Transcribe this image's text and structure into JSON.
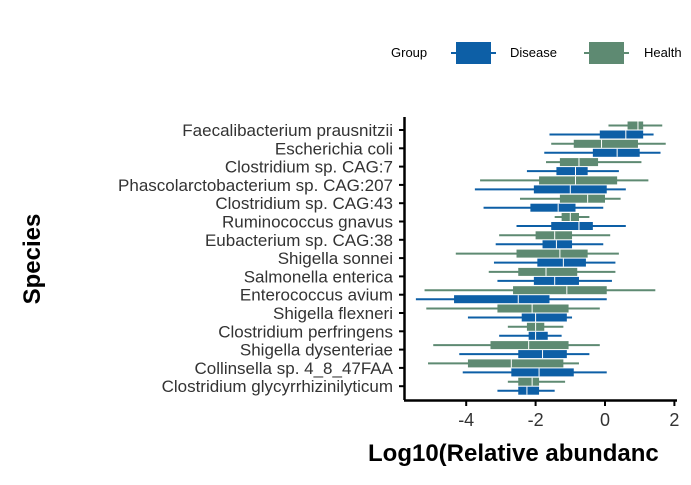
{
  "chart_data": {
    "type": "boxplot",
    "title": "",
    "xlabel": "Log10(Relative abundanc",
    "ylabel": "Species",
    "xlim": [
      -5.6,
      2
    ],
    "x_ticks": [
      -4,
      -2,
      0,
      2
    ],
    "x_tick_labels": [
      "-4",
      "-2",
      "0",
      "2"
    ],
    "legend": {
      "title": "Group",
      "position": "top-right",
      "entries": [
        {
          "name": "Disease",
          "color": "#0d5fa6"
        },
        {
          "name": "Health",
          "color": "#5e8a72"
        }
      ]
    },
    "categories": [
      "Faecalibacterium prausnitzii",
      "Escherichia coli",
      "Clostridium sp. CAG:7",
      "Phascolarctobacterium sp. CAG:207",
      "Clostridium sp. CAG:43",
      "Ruminococcus gnavus",
      "Eubacterium sp. CAG:38",
      "Shigella sonnei",
      "Salmonella enterica",
      "Enterococcus avium",
      "Shigella flexneri",
      "Clostridium perfringens",
      "Shigella dysenteriae",
      "Collinsella sp. 4_8_47FAA",
      "Clostridium glycyrrhizinilyticum"
    ],
    "series": [
      {
        "name": "Health",
        "color": "#5e8a72",
        "boxes": [
          {
            "min": 0.1,
            "q1": 0.65,
            "median": 0.95,
            "q3": 1.1,
            "max": 1.65
          },
          {
            "min": -1.55,
            "q1": -0.9,
            "median": -0.1,
            "q3": 0.95,
            "max": 1.75
          },
          {
            "min": -1.7,
            "q1": -1.3,
            "median": -0.75,
            "q3": -0.2,
            "max": 1.05
          },
          {
            "min": -3.6,
            "q1": -1.9,
            "median": -0.85,
            "q3": 0.35,
            "max": 1.25
          },
          {
            "min": -2.45,
            "q1": -1.3,
            "median": -0.5,
            "q3": 0.0,
            "max": 0.45
          },
          {
            "min": -1.45,
            "q1": -1.25,
            "median": -1.0,
            "q3": -0.75,
            "max": -0.45
          },
          {
            "min": -3.05,
            "q1": -2.0,
            "median": -1.45,
            "q3": -0.95,
            "max": 0.15
          },
          {
            "min": -4.3,
            "q1": -2.55,
            "median": -1.3,
            "q3": -0.5,
            "max": 0.4
          },
          {
            "min": -3.35,
            "q1": -2.5,
            "median": -1.7,
            "q3": -0.8,
            "max": 0.3
          },
          {
            "min": -5.2,
            "q1": -2.65,
            "median": -1.1,
            "q3": 0.05,
            "max": 1.45
          },
          {
            "min": -5.15,
            "q1": -3.1,
            "median": -2.1,
            "q3": -1.05,
            "max": -0.15
          },
          {
            "min": -2.8,
            "q1": -2.25,
            "median": -2.0,
            "q3": -1.75,
            "max": -1.2
          },
          {
            "min": -4.95,
            "q1": -3.3,
            "median": -2.2,
            "q3": -1.05,
            "max": -0.15
          },
          {
            "min": -5.1,
            "q1": -3.95,
            "median": -2.7,
            "q3": -1.2,
            "max": -0.75
          },
          {
            "min": -2.8,
            "q1": -2.5,
            "median": -2.1,
            "q3": -1.9,
            "max": -1.15
          }
        ]
      },
      {
        "name": "Disease",
        "color": "#0d5fa6",
        "boxes": [
          {
            "min": -1.6,
            "q1": -0.15,
            "median": 0.6,
            "q3": 1.1,
            "max": 1.4
          },
          {
            "min": -1.75,
            "q1": -0.35,
            "median": 0.35,
            "q3": 1.0,
            "max": 1.6
          },
          {
            "min": -2.25,
            "q1": -1.4,
            "median": -0.85,
            "q3": -0.5,
            "max": 0.4
          },
          {
            "min": -3.75,
            "q1": -2.05,
            "median": -1.0,
            "q3": 0.05,
            "max": 0.6
          },
          {
            "min": -3.5,
            "q1": -2.15,
            "median": -1.35,
            "q3": -0.85,
            "max": -0.05
          },
          {
            "min": -2.55,
            "q1": -1.55,
            "median": -0.75,
            "q3": -0.35,
            "max": 0.6
          },
          {
            "min": -3.15,
            "q1": -1.8,
            "median": -1.4,
            "q3": -0.95,
            "max": -0.05
          },
          {
            "min": -3.2,
            "q1": -1.95,
            "median": -1.2,
            "q3": -0.55,
            "max": 0.3
          },
          {
            "min": -3.1,
            "q1": -2.05,
            "median": -1.45,
            "q3": -0.75,
            "max": 0.2
          },
          {
            "min": -5.45,
            "q1": -4.35,
            "median": -2.5,
            "q3": -1.6,
            "max": 0.05
          },
          {
            "min": -3.95,
            "q1": -2.4,
            "median": -2.0,
            "q3": -1.1,
            "max": -0.95
          },
          {
            "min": -3.05,
            "q1": -2.2,
            "median": -2.0,
            "q3": -1.65,
            "max": -1.25
          },
          {
            "min": -4.2,
            "q1": -2.5,
            "median": -1.8,
            "q3": -1.1,
            "max": -0.45
          },
          {
            "min": -4.1,
            "q1": -2.7,
            "median": -1.9,
            "q3": -0.9,
            "max": 0.05
          },
          {
            "min": -3.1,
            "q1": -2.5,
            "median": -2.25,
            "q3": -1.9,
            "max": -1.45
          }
        ]
      }
    ]
  }
}
